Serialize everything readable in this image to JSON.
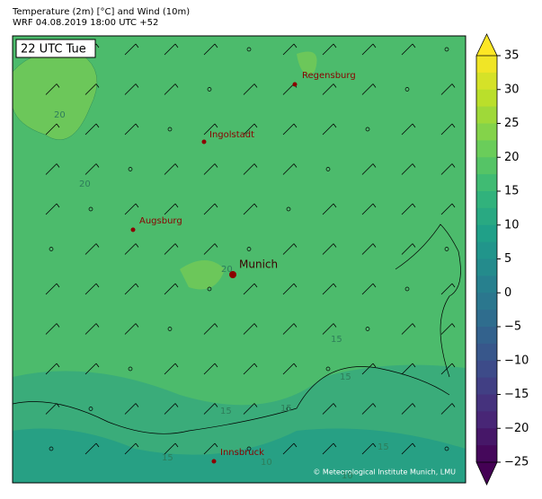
{
  "header": {
    "title_lines": [
      "Temperature (2m) [°C] and Wind (10m)",
      "WRF 04.08.2019 18:00 UTC +52"
    ]
  },
  "map": {
    "time_label": "22 UTC Tue",
    "cities": [
      {
        "name": "Regensburg"
      },
      {
        "name": "Ingolstadt"
      },
      {
        "name": "Augsburg"
      },
      {
        "name": "Munich"
      },
      {
        "name": "Innsbruck"
      }
    ],
    "contour_labels": [
      "20",
      "20",
      "20",
      "15",
      "15",
      "15",
      "15",
      "15",
      "15",
      "10",
      "10"
    ],
    "credit": "© Meteorological Institute Munich, LMU"
  },
  "colorbar": {
    "range": [
      -25,
      35
    ],
    "ticks": [
      35,
      30,
      25,
      20,
      15,
      10,
      5,
      0,
      {
        "value": -5,
        "label": "−5"
      },
      {
        "value": -10,
        "label": "−10"
      },
      {
        "value": -15,
        "label": "−15"
      },
      {
        "value": -20,
        "label": "−20"
      },
      {
        "value": -25,
        "label": "−25"
      }
    ]
  }
}
